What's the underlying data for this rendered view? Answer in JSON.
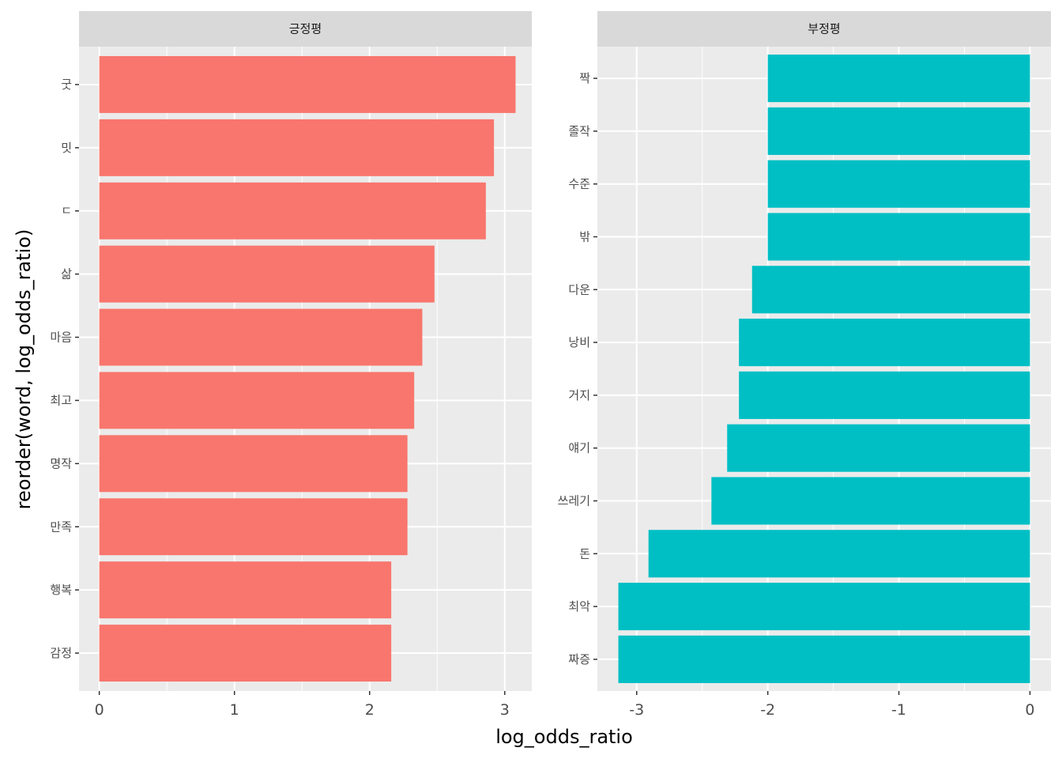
{
  "chart_data": {
    "type": "bar",
    "orientation": "horizontal",
    "xlabel": "log_odds_ratio",
    "ylabel": "reorder(word, log_odds_ratio)",
    "grid": true,
    "legend": "none",
    "facets": [
      {
        "title": "긍정평",
        "color": "#F8766D",
        "xlim": [
          -0.15,
          3.2
        ],
        "xticks": [
          0,
          1,
          2,
          3
        ],
        "categories": [
          "굿",
          "밋",
          "ㄷ",
          "삶",
          "마음",
          "최고",
          "명작",
          "만족",
          "행복",
          "감정"
        ],
        "values": [
          3.08,
          2.92,
          2.86,
          2.48,
          2.39,
          2.33,
          2.28,
          2.28,
          2.16,
          2.16
        ]
      },
      {
        "title": "부정평",
        "color": "#00BFC4",
        "xlim": [
          -3.3,
          0.16
        ],
        "xticks": [
          -3,
          -2,
          -1,
          0
        ],
        "categories": [
          "짝",
          "졸작",
          "수준",
          "밖",
          "다운",
          "낭비",
          "거지",
          "얘기",
          "쓰레기",
          "돈",
          "최악",
          "짜증"
        ],
        "values": [
          -2.0,
          -2.0,
          -2.0,
          -2.0,
          -2.12,
          -2.22,
          -2.22,
          -2.31,
          -2.43,
          -2.91,
          -3.14,
          -3.14
        ]
      }
    ]
  }
}
